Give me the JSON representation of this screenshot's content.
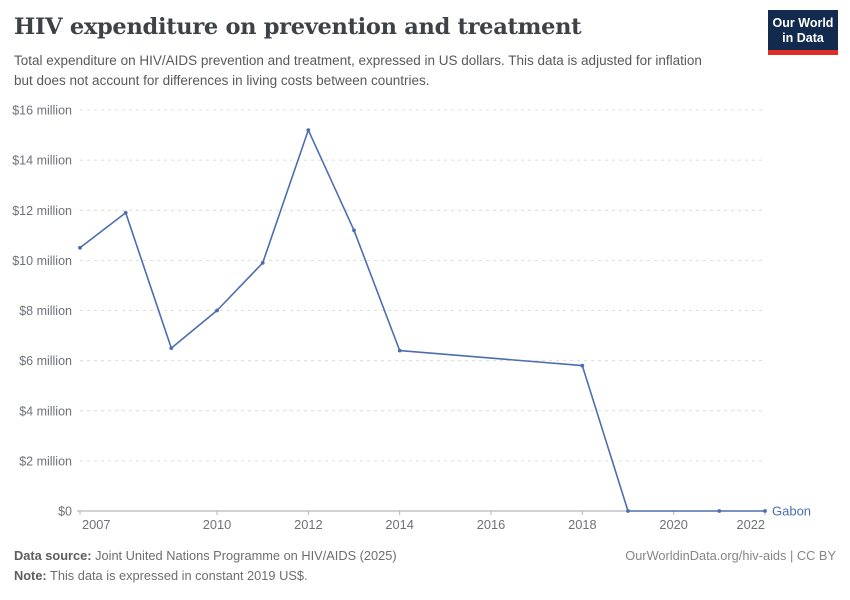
{
  "header": {
    "title": "HIV expenditure on prevention and treatment",
    "subtitle": "Total expenditure on HIV/AIDS prevention and treatment, expressed in US dollars. This data is adjusted for inflation but does not account for differences in living costs between countries.",
    "logo": {
      "line1": "Our World",
      "line2": "in Data",
      "bg_color": "#122a4e",
      "accent_color": "#dc2e27"
    }
  },
  "chart_data": {
    "type": "line",
    "title": "HIV expenditure on prevention and treatment",
    "xlabel": "",
    "ylabel": "",
    "xlim": [
      2007,
      2022
    ],
    "ylim_usd_million": [
      0,
      16
    ],
    "grid": "horizontal dashed",
    "legend_position": "end-of-line label",
    "series": [
      {
        "name": "Gabon",
        "color": "#4d6eae",
        "points": [
          {
            "year": 2007,
            "value_usd_million": 10.5
          },
          {
            "year": 2008,
            "value_usd_million": 11.9
          },
          {
            "year": 2009,
            "value_usd_million": 6.5
          },
          {
            "year": 2010,
            "value_usd_million": 8.0
          },
          {
            "year": 2011,
            "value_usd_million": 9.9
          },
          {
            "year": 2012,
            "value_usd_million": 15.2
          },
          {
            "year": 2013,
            "value_usd_million": 11.2
          },
          {
            "year": 2014,
            "value_usd_million": 6.4
          },
          {
            "year": 2018,
            "value_usd_million": 5.8
          },
          {
            "year": 2019,
            "value_usd_million": 0
          },
          {
            "year": 2021,
            "value_usd_million": 0
          },
          {
            "year": 2022,
            "value_usd_million": 0
          }
        ]
      }
    ],
    "x_ticks": [
      {
        "year": 2007,
        "label": "2007"
      },
      {
        "year": 2010,
        "label": "2010"
      },
      {
        "year": 2012,
        "label": "2012"
      },
      {
        "year": 2014,
        "label": "2014"
      },
      {
        "year": 2016,
        "label": "2016"
      },
      {
        "year": 2018,
        "label": "2018"
      },
      {
        "year": 2020,
        "label": "2020"
      },
      {
        "year": 2022,
        "label": "2022"
      }
    ],
    "y_ticks": [
      {
        "value": 0,
        "label": "$0"
      },
      {
        "value": 2,
        "label": "$2 million"
      },
      {
        "value": 4,
        "label": "$4 million"
      },
      {
        "value": 6,
        "label": "$6 million"
      },
      {
        "value": 8,
        "label": "$8 million"
      },
      {
        "value": 10,
        "label": "$10 million"
      },
      {
        "value": 12,
        "label": "$12 million"
      },
      {
        "value": 14,
        "label": "$14 million"
      },
      {
        "value": 16,
        "label": "$16 million"
      }
    ]
  },
  "footer": {
    "datasource_label": "Data source:",
    "datasource_text": " Joint United Nations Programme on HIV/AIDS (2025)",
    "note_label": "Note:",
    "note_text": " This data is expressed in constant 2019 US$.",
    "attribution": "OurWorldinData.org/hiv-aids | CC BY"
  }
}
